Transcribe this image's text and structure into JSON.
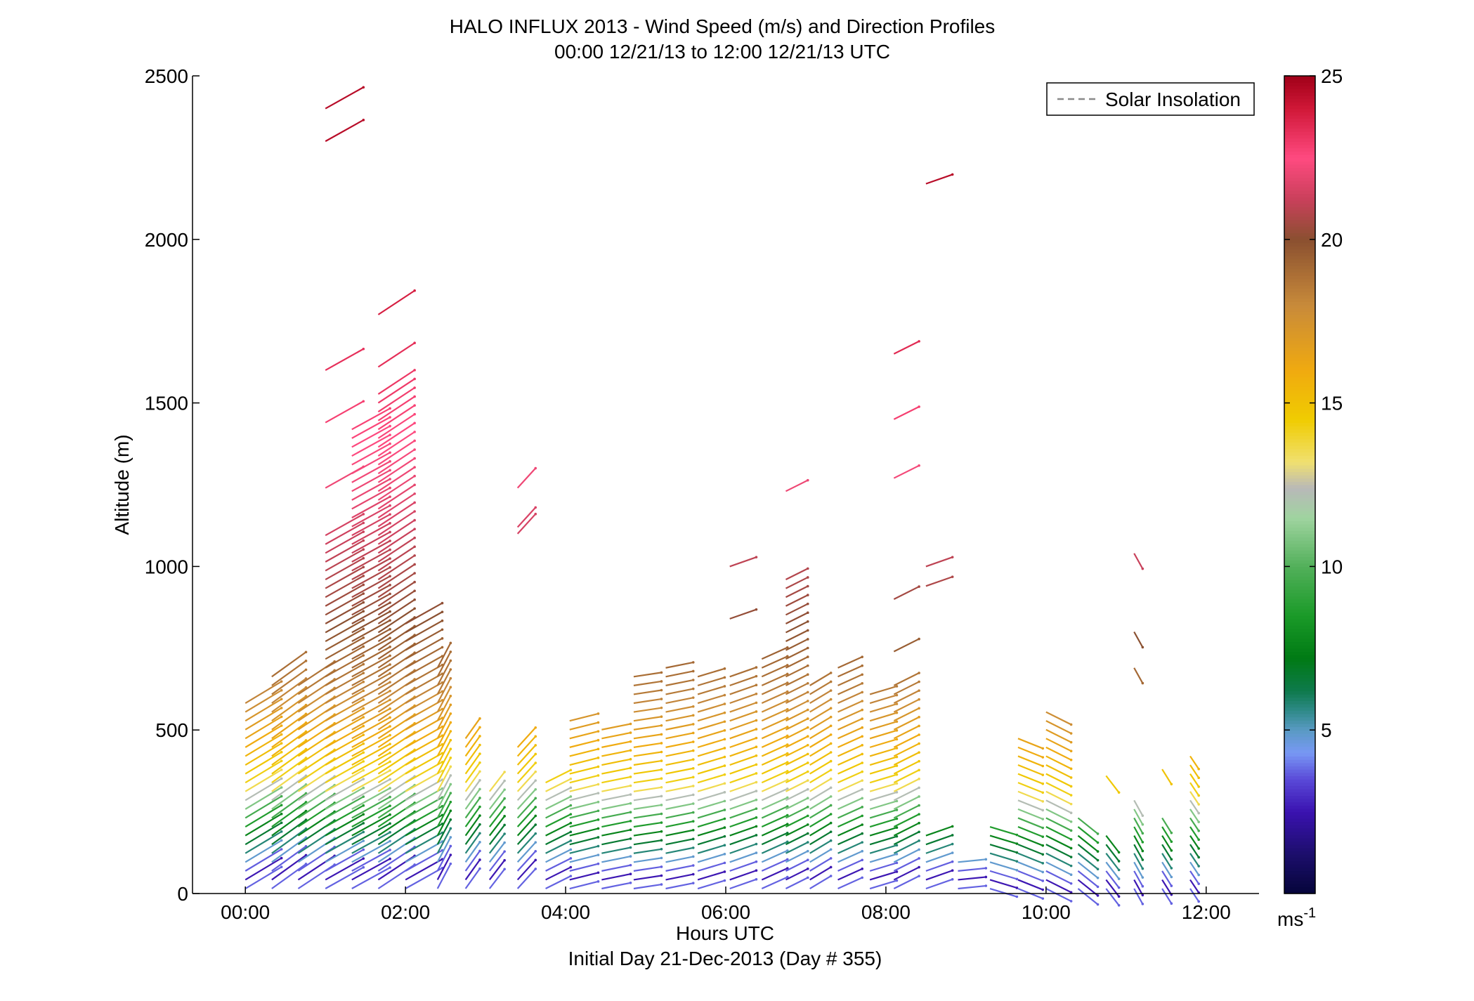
{
  "chart_data": {
    "type": "scatter",
    "title": "HALO INFLUX 2013 - Wind Speed (m/s) and Direction Profiles",
    "subtitle": "00:00 12/21/13 to 12:00 12/21/13  UTC",
    "xlabel": "Hours UTC",
    "xlabel2": "Initial Day 21-Dec-2013 (Day # 355)",
    "ylabel": "Altitude (m)",
    "xlim": [
      -0.66,
      12.66
    ],
    "ylim": [
      0,
      2500
    ],
    "x_ticks": [
      0,
      2,
      4,
      6,
      8,
      10,
      12
    ],
    "x_tick_labels": [
      "00:00",
      "02:00",
      "04:00",
      "06:00",
      "08:00",
      "10:00",
      "12:00"
    ],
    "y_ticks": [
      0,
      500,
      1000,
      1500,
      2000,
      2500
    ],
    "y_tick_labels": [
      "0",
      "500",
      "1000",
      "1500",
      "2000",
      "2500"
    ],
    "legend": {
      "entries": [
        "Solar Insolation"
      ],
      "placement": "top-right",
      "line_color": "#8a8a8a"
    },
    "colorbar": {
      "min": 0,
      "max": 25,
      "ticks": [
        5,
        10,
        15,
        20,
        25
      ],
      "tick_labels": [
        "5",
        "10",
        "15",
        "20",
        "25"
      ],
      "unit_label": "ms",
      "unit_exponent": "-1",
      "colormap": [
        {
          "v": 0,
          "c": "#05053a"
        },
        {
          "v": 1.2,
          "c": "#1c0e6b"
        },
        {
          "v": 2.5,
          "c": "#3a12b0"
        },
        {
          "v": 3.5,
          "c": "#5a4ad8"
        },
        {
          "v": 4.3,
          "c": "#7898f4"
        },
        {
          "v": 5.0,
          "c": "#5a9ac4"
        },
        {
          "v": 5.6,
          "c": "#2e8a88"
        },
        {
          "v": 6.2,
          "c": "#0e7a4c"
        },
        {
          "v": 7.2,
          "c": "#007a14"
        },
        {
          "v": 8.5,
          "c": "#1a9a28"
        },
        {
          "v": 10,
          "c": "#52b05a"
        },
        {
          "v": 11.5,
          "c": "#a0d4a0"
        },
        {
          "v": 12.4,
          "c": "#b8b8b8"
        },
        {
          "v": 13.2,
          "c": "#f0e070"
        },
        {
          "v": 14.5,
          "c": "#f0cc00"
        },
        {
          "v": 16,
          "c": "#f0aa10"
        },
        {
          "v": 18,
          "c": "#c88a3a"
        },
        {
          "v": 20,
          "c": "#8a5030"
        },
        {
          "v": 21.2,
          "c": "#c8405a"
        },
        {
          "v": 22.5,
          "c": "#ff4a80"
        },
        {
          "v": 24,
          "c": "#d01838"
        },
        {
          "v": 25,
          "c": "#a00018"
        }
      ]
    },
    "profiles": [
      {
        "t": 0.0,
        "h": 600,
        "tilt": 0.6,
        "dir": -1,
        "len": 60,
        "extra": []
      },
      {
        "t": 0.33,
        "h": 680,
        "tilt": 0.72,
        "dir": -1,
        "len": 60,
        "extra": []
      },
      {
        "t": 0.66,
        "h": 650,
        "tilt": 0.66,
        "dir": -1,
        "len": 62,
        "extra": []
      },
      {
        "t": 1.0,
        "h": 1110,
        "tilt": 0.56,
        "dir": -1,
        "len": 62,
        "extra": [
          1240,
          1440,
          1600,
          2300,
          2400
        ]
      },
      {
        "t": 1.33,
        "h": 1440,
        "tilt": 0.55,
        "dir": -1,
        "len": 62,
        "extra": []
      },
      {
        "t": 1.66,
        "h": 1540,
        "tilt": 0.66,
        "dir": -1,
        "len": 62,
        "extra": [
          1610,
          1770
        ]
      },
      {
        "t": 2.0,
        "h": 850,
        "tilt": 0.56,
        "dir": -1,
        "len": 60,
        "extra": []
      },
      {
        "t": 2.4,
        "h": 690,
        "tilt": 1.9,
        "dir": -1,
        "len": 40,
        "extra": []
      },
      {
        "t": 2.75,
        "h": 480,
        "tilt": 1.4,
        "dir": -1,
        "len": 35,
        "extra": []
      },
      {
        "t": 3.05,
        "h": 330,
        "tilt": 1.3,
        "dir": -1,
        "len": 35,
        "extra": []
      },
      {
        "t": 3.4,
        "h": 470,
        "tilt": 1.1,
        "dir": -1,
        "len": 38,
        "extra": [
          1100,
          1120,
          1240
        ]
      },
      {
        "t": 3.75,
        "h": 350,
        "tilt": 0.5,
        "dir": -1,
        "len": 40,
        "extra": []
      },
      {
        "t": 4.05,
        "h": 550,
        "tilt": 0.25,
        "dir": -1,
        "len": 42,
        "extra": []
      },
      {
        "t": 4.45,
        "h": 510,
        "tilt": 0.2,
        "dir": -1,
        "len": 42,
        "extra": []
      },
      {
        "t": 4.85,
        "h": 680,
        "tilt": 0.15,
        "dir": -1,
        "len": 40,
        "extra": []
      },
      {
        "t": 5.25,
        "h": 690,
        "tilt": 0.2,
        "dir": -1,
        "len": 40,
        "extra": []
      },
      {
        "t": 5.65,
        "h": 680,
        "tilt": 0.3,
        "dir": -1,
        "len": 40,
        "extra": []
      },
      {
        "t": 6.05,
        "h": 680,
        "tilt": 0.35,
        "dir": -1,
        "len": 40,
        "extra": [
          840,
          1000
        ]
      },
      {
        "t": 6.45,
        "h": 720,
        "tilt": 0.45,
        "dir": -1,
        "len": 40,
        "extra": []
      },
      {
        "t": 6.75,
        "h": 980,
        "tilt": 0.5,
        "dir": -1,
        "len": 35,
        "extra": [
          1230
        ]
      },
      {
        "t": 7.05,
        "h": 660,
        "tilt": 0.6,
        "dir": -1,
        "len": 35,
        "extra": []
      },
      {
        "t": 7.4,
        "h": 690,
        "tilt": 0.45,
        "dir": -1,
        "len": 38,
        "extra": []
      },
      {
        "t": 7.8,
        "h": 630,
        "tilt": 0.3,
        "dir": -1,
        "len": 40,
        "extra": []
      },
      {
        "t": 8.1,
        "h": 660,
        "tilt": 0.5,
        "dir": -1,
        "len": 40,
        "extra": [
          740,
          900,
          1270,
          1450,
          1650
        ]
      },
      {
        "t": 8.5,
        "h": 200,
        "tilt": 0.35,
        "dir": 1,
        "len": 40,
        "extra": [
          940,
          1000,
          2170
        ]
      },
      {
        "t": 8.9,
        "h": 100,
        "tilt": 0.1,
        "dir": 1,
        "len": 40,
        "extra": []
      },
      {
        "t": 9.3,
        "h": 230,
        "tilt": -0.3,
        "dir": 1,
        "len": 40,
        "extra": []
      },
      {
        "t": 9.65,
        "h": 500,
        "tilt": -0.4,
        "dir": 1,
        "len": 38,
        "extra": []
      },
      {
        "t": 10.0,
        "h": 560,
        "tilt": -0.5,
        "dir": 1,
        "len": 40,
        "extra": []
      },
      {
        "t": 10.4,
        "h": 250,
        "tilt": -0.8,
        "dir": 1,
        "len": 36,
        "extra": []
      },
      {
        "t": 10.75,
        "h": 200,
        "tilt": -1.3,
        "dir": 1,
        "len": 30,
        "extra": [
          360
        ]
      },
      {
        "t": 11.1,
        "h": 300,
        "tilt": -1.8,
        "dir": 1,
        "len": 25,
        "extra": [
          690,
          800,
          1040
        ]
      },
      {
        "t": 11.45,
        "h": 250,
        "tilt": -1.6,
        "dir": 1,
        "len": 25,
        "extra": [
          380
        ]
      },
      {
        "t": 11.8,
        "h": 420,
        "tilt": -1.5,
        "dir": 1,
        "len": 22,
        "extra": []
      }
    ],
    "speed_bands": [
      {
        "h": 0,
        "s": 4.5
      },
      {
        "h": 40,
        "s": 2.5
      },
      {
        "h": 100,
        "s": 5
      },
      {
        "h": 160,
        "s": 7
      },
      {
        "h": 240,
        "s": 10
      },
      {
        "h": 320,
        "s": 14
      },
      {
        "h": 450,
        "s": 16
      },
      {
        "h": 600,
        "s": 18.5
      },
      {
        "h": 800,
        "s": 20
      },
      {
        "h": 1000,
        "s": 21
      },
      {
        "h": 1200,
        "s": 22
      },
      {
        "h": 1500,
        "s": 23
      },
      {
        "h": 2000,
        "s": 24.5
      }
    ]
  }
}
